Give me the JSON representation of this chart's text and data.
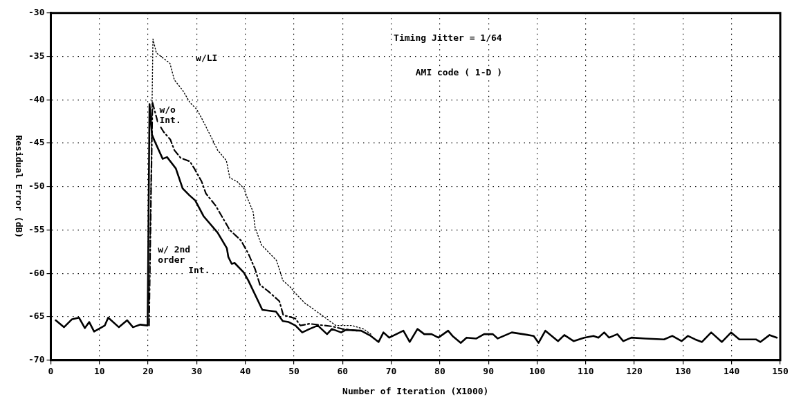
{
  "chart_data": {
    "type": "line",
    "xlabel": "Number of Iteration (X1000)",
    "ylabel": "Residual Error (dB)",
    "annotations": [
      "Timing Jitter = 1/64",
      "AMI code ( 1-D )"
    ],
    "xlim": [
      0,
      150
    ],
    "ylim": [
      -70,
      -30
    ],
    "xticks": [
      0,
      10,
      20,
      30,
      40,
      50,
      60,
      70,
      80,
      90,
      100,
      110,
      120,
      130,
      140,
      150
    ],
    "yticks": [
      -70,
      -65,
      -60,
      -55,
      -50,
      -45,
      -40,
      -35,
      -30
    ],
    "grid": true,
    "legend": false,
    "marker": "none",
    "series": [
      {
        "name": "w/LI",
        "color": "#000000",
        "line_style": "dotted",
        "x": [
          20.2,
          21,
          21.7,
          24.5,
          25.4,
          27.1,
          28.6,
          30,
          31,
          32.9,
          34.3,
          36.1,
          36.8,
          38.3,
          39.7,
          40.4,
          41.6,
          42,
          43.3,
          44.5,
          46.4,
          47.1,
          47.7,
          49.3,
          50,
          52.2,
          55.7,
          58.6,
          61.9,
          64.3,
          65.8
        ],
        "values": [
          -66,
          -33,
          -34.6,
          -35.8,
          -37.7,
          -38.9,
          -40.3,
          -41.1,
          -42.1,
          -44.2,
          -45.8,
          -47,
          -49,
          -49.4,
          -50.2,
          -51.3,
          -52.9,
          -54.7,
          -56.7,
          -57.4,
          -58.5,
          -59.7,
          -60.8,
          -61.6,
          -62.1,
          -63.4,
          -64.8,
          -66,
          -66,
          -66.4,
          -67
        ]
      },
      {
        "name": "w/o Int.",
        "color": "#000000",
        "line_style": "dashed",
        "x": [
          20.2,
          20.9,
          22,
          23.2,
          24.6,
          25.4,
          26.7,
          28.6,
          29.6,
          31,
          31.9,
          33.9,
          36.8,
          39.1,
          40.6,
          42,
          43,
          44.8,
          47,
          47.8,
          50.3,
          51.3,
          53.2,
          57.8,
          60,
          63
        ],
        "values": [
          -66,
          -40.3,
          -42.6,
          -43.7,
          -44.6,
          -45.8,
          -46.7,
          -47.1,
          -48,
          -49.4,
          -50.8,
          -52.2,
          -55,
          -56.2,
          -57.7,
          -59.5,
          -61.3,
          -62.1,
          -63.2,
          -64.8,
          -65.2,
          -66,
          -65.8,
          -66.1,
          -66.4,
          -66.6
        ]
      },
      {
        "name": "w/ 2nd order Int.",
        "color": "#000000",
        "line_style": "solid",
        "x": [
          1,
          2.7,
          4.3,
          5.8,
          7,
          7.9,
          8.9,
          11.1,
          11.8,
          14,
          15.7,
          16.9,
          18.4,
          19.9,
          20.3,
          20.8,
          21.3,
          23,
          23.9,
          25.7,
          27.1,
          28.5,
          29.7,
          31.4,
          34.3,
          36.2,
          36.5,
          37.2,
          37.8,
          39.7,
          40.6,
          43.5,
          44.9,
          46.3,
          47.7,
          48.9,
          50.3,
          51.7,
          53.2,
          54.9,
          56.8,
          57.8,
          59.7,
          60.7,
          63.8,
          65.8,
          67.4,
          68.4,
          69.6,
          72.5,
          73.8,
          75.4,
          76.8,
          78.3,
          79.7,
          81.7,
          82.6,
          84.3,
          85.5,
          87.5,
          89.1,
          90.9,
          91.9,
          94.8,
          97.1,
          99.3,
          100.3,
          101.7,
          104.3,
          105.6,
          107.5,
          109.7,
          111.6,
          112.6,
          113.8,
          114.8,
          116.5,
          117.7,
          119.4,
          122.3,
          126.1,
          127.8,
          129.7,
          131,
          132.5,
          133.9,
          135.8,
          138,
          139.9,
          141.6,
          145,
          145.9,
          147.8,
          149.3
        ],
        "values": [
          -65.4,
          -66.2,
          -65.3,
          -65.1,
          -66.3,
          -65.6,
          -66.7,
          -66,
          -65.1,
          -66.2,
          -65.4,
          -66.2,
          -65.9,
          -66,
          -40.5,
          -44,
          -44.7,
          -46.8,
          -46.6,
          -47.9,
          -50.2,
          -51,
          -51.6,
          -53.4,
          -55.3,
          -57.1,
          -58.1,
          -58.9,
          -58.8,
          -59.9,
          -60.8,
          -64.2,
          -64.3,
          -64.4,
          -65.5,
          -65.6,
          -66,
          -66.8,
          -66.4,
          -66,
          -67,
          -66.4,
          -66.8,
          -66.5,
          -66.6,
          -67.2,
          -67.9,
          -66.8,
          -67.4,
          -66.6,
          -67.9,
          -66.4,
          -67,
          -67,
          -67.4,
          -66.6,
          -67.2,
          -68,
          -67.4,
          -67.5,
          -67,
          -67,
          -67.5,
          -66.8,
          -67,
          -67.2,
          -68,
          -66.6,
          -67.8,
          -67.1,
          -67.8,
          -67.4,
          -67.2,
          -67.4,
          -66.8,
          -67.4,
          -67,
          -67.8,
          -67.4,
          -67.5,
          -67.6,
          -67.2,
          -67.8,
          -67.2,
          -67.6,
          -67.9,
          -66.8,
          -67.9,
          -66.8,
          -67.6,
          -67.6,
          -67.9,
          -67.1,
          -67.4
        ]
      }
    ]
  }
}
